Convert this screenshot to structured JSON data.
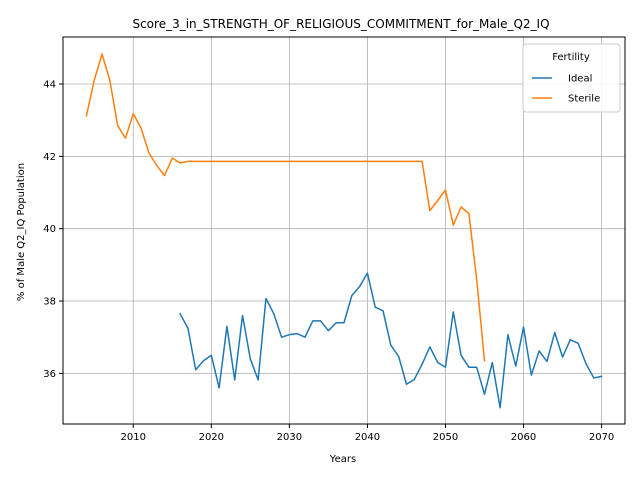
{
  "chart_data": {
    "type": "line",
    "title": "Score_3_in_STRENGTH_OF_RELIGIOUS_COMMITMENT_for_Male_Q2_IQ",
    "xlabel": "Years",
    "ylabel": "% of Male Q2_IQ Population",
    "xlim": [
      2001,
      2073
    ],
    "ylim": [
      34.6,
      45.3
    ],
    "xticks": [
      2010,
      2020,
      2030,
      2040,
      2050,
      2060,
      2070
    ],
    "yticks": [
      36,
      38,
      40,
      42,
      44
    ],
    "grid": true,
    "legend": {
      "title": "Fertility",
      "placement": "top-right"
    },
    "colors": {
      "Ideal": "#1f77b4",
      "Sterile": "#ff7f0e"
    },
    "series": [
      {
        "name": "Ideal",
        "points": [
          [
            2016,
            37.65
          ],
          [
            2017,
            37.25
          ],
          [
            2018,
            36.1
          ],
          [
            2019,
            36.35
          ],
          [
            2020,
            36.5
          ],
          [
            2021,
            35.6
          ],
          [
            2022,
            37.3
          ],
          [
            2023,
            35.82
          ],
          [
            2024,
            37.6
          ],
          [
            2025,
            36.4
          ],
          [
            2026,
            35.82
          ],
          [
            2027,
            38.07
          ],
          [
            2028,
            37.65
          ],
          [
            2029,
            37.0
          ],
          [
            2030,
            37.07
          ],
          [
            2031,
            37.1
          ],
          [
            2032,
            37.0
          ],
          [
            2033,
            37.45
          ],
          [
            2034,
            37.45
          ],
          [
            2035,
            37.18
          ],
          [
            2036,
            37.4
          ],
          [
            2037,
            37.4
          ],
          [
            2038,
            38.15
          ],
          [
            2039,
            38.4
          ],
          [
            2040,
            38.77
          ],
          [
            2041,
            37.83
          ],
          [
            2042,
            37.73
          ],
          [
            2043,
            36.78
          ],
          [
            2044,
            36.47
          ],
          [
            2045,
            35.7
          ],
          [
            2046,
            35.83
          ],
          [
            2047,
            36.25
          ],
          [
            2048,
            36.73
          ],
          [
            2049,
            36.3
          ],
          [
            2050,
            36.17
          ],
          [
            2051,
            37.7
          ],
          [
            2052,
            36.5
          ],
          [
            2053,
            36.17
          ],
          [
            2054,
            36.17
          ],
          [
            2055,
            35.42
          ],
          [
            2056,
            36.3
          ],
          [
            2057,
            35.05
          ],
          [
            2058,
            37.07
          ],
          [
            2059,
            36.2
          ],
          [
            2060,
            37.28
          ],
          [
            2061,
            35.95
          ],
          [
            2062,
            36.62
          ],
          [
            2063,
            36.33
          ],
          [
            2064,
            37.13
          ],
          [
            2065,
            36.45
          ],
          [
            2066,
            36.93
          ],
          [
            2067,
            36.83
          ],
          [
            2068,
            36.27
          ],
          [
            2069,
            35.87
          ],
          [
            2070,
            35.92
          ]
        ]
      },
      {
        "name": "Sterile",
        "points": [
          [
            2004,
            43.12
          ],
          [
            2005,
            44.1
          ],
          [
            2006,
            44.83
          ],
          [
            2007,
            44.1
          ],
          [
            2008,
            42.85
          ],
          [
            2009,
            42.5
          ],
          [
            2010,
            43.18
          ],
          [
            2011,
            42.78
          ],
          [
            2012,
            42.1
          ],
          [
            2013,
            41.75
          ],
          [
            2014,
            41.47
          ],
          [
            2015,
            41.95
          ],
          [
            2016,
            41.82
          ],
          [
            2017,
            41.86
          ],
          [
            2018,
            41.86
          ],
          [
            2020,
            41.86
          ],
          [
            2025,
            41.86
          ],
          [
            2030,
            41.86
          ],
          [
            2035,
            41.86
          ],
          [
            2040,
            41.86
          ],
          [
            2045,
            41.86
          ],
          [
            2047,
            41.86
          ],
          [
            2048,
            40.5
          ],
          [
            2049,
            40.78
          ],
          [
            2050,
            41.07
          ],
          [
            2051,
            40.1
          ],
          [
            2052,
            40.6
          ],
          [
            2053,
            40.42
          ],
          [
            2054,
            38.6
          ],
          [
            2055,
            36.35
          ]
        ]
      }
    ]
  }
}
